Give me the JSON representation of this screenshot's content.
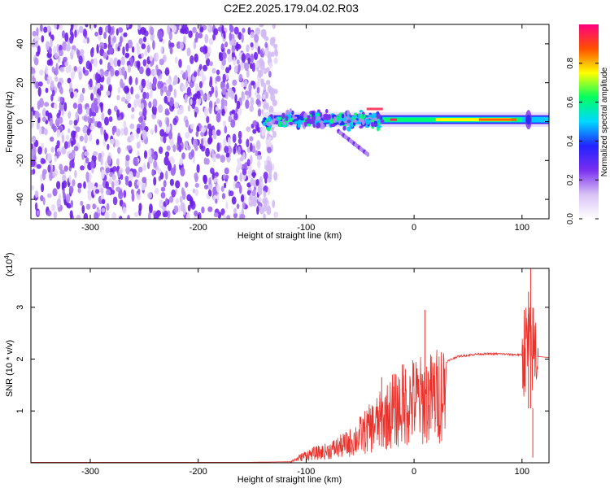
{
  "title": "C2E2.2025.179.04.02.R03",
  "chart_data": [
    {
      "type": "heatmap",
      "title": "C2E2.2025.179.04.02.R03",
      "xlabel": "Height of straight line (km)",
      "ylabel": "Frequency (Hz)",
      "xlim": [
        -355,
        125
      ],
      "ylim": [
        -50,
        50
      ],
      "x_ticks": [
        -300,
        -200,
        -100,
        0,
        100
      ],
      "y_ticks": [
        -40,
        -20,
        0,
        20,
        40
      ],
      "colorbar": {
        "label": "Normalized spectral amplitude",
        "range": [
          0,
          1
        ],
        "ticks": [
          0.0,
          0.2,
          0.4,
          0.6,
          0.8
        ],
        "colors": [
          "#ffffff",
          "#d8c2f5",
          "#7a2ff0",
          "#2222ff",
          "#00d8ff",
          "#00ff60",
          "#ffff00",
          "#ff5000",
          "#ff0080"
        ]
      },
      "regions": [
        {
          "description": "noise",
          "x_range": [
            -355,
            -132
          ],
          "freq_range": [
            -50,
            50
          ],
          "amplitude": "low"
        },
        {
          "description": "signal band",
          "x_range": [
            -140,
            125
          ],
          "freq_center": 1,
          "peak_amplitude": 0.95
        }
      ]
    },
    {
      "type": "line",
      "xlabel": "Height of straight line (km)",
      "ylabel": "SNR (10 * v/v)",
      "yscale_label": "(x10",
      "yscale_exp": "4",
      "yscale_suffix": ")",
      "xlim": [
        -355,
        125
      ],
      "ylim": [
        0,
        3.75
      ],
      "x_ticks": [
        -300,
        -200,
        -100,
        0,
        100
      ],
      "y_ticks": [
        1,
        2,
        3
      ],
      "series": [
        {
          "color": "#e8332d",
          "points": [
            [
              -355,
              0.01
            ],
            [
              -250,
              0.01
            ],
            [
              -150,
              0.01
            ],
            [
              -115,
              0.02
            ],
            [
              -100,
              0.2
            ],
            [
              -80,
              0.3
            ],
            [
              -60,
              0.5
            ],
            [
              -40,
              0.9
            ],
            [
              -30,
              1.1
            ],
            [
              -20,
              1.3
            ],
            [
              -10,
              1.5
            ],
            [
              0,
              1.6
            ],
            [
              10,
              1.6
            ],
            [
              20,
              1.7
            ],
            [
              30,
              1.95
            ],
            [
              40,
              2.05
            ],
            [
              60,
              2.1
            ],
            [
              80,
              2.1
            ],
            [
              100,
              2.08
            ],
            [
              105,
              2.1
            ],
            [
              110,
              2.1
            ],
            [
              115,
              2.05
            ],
            [
              125,
              2.03
            ]
          ],
          "spikes": [
            [
              10,
              2.95
            ],
            [
              -30,
              1.65
            ],
            [
              -20,
              1.7
            ],
            [
              -10,
              1.9
            ],
            [
              106,
              3.3
            ],
            [
              108,
              3.75
            ],
            [
              110,
              0.1
            ]
          ]
        }
      ]
    }
  ]
}
